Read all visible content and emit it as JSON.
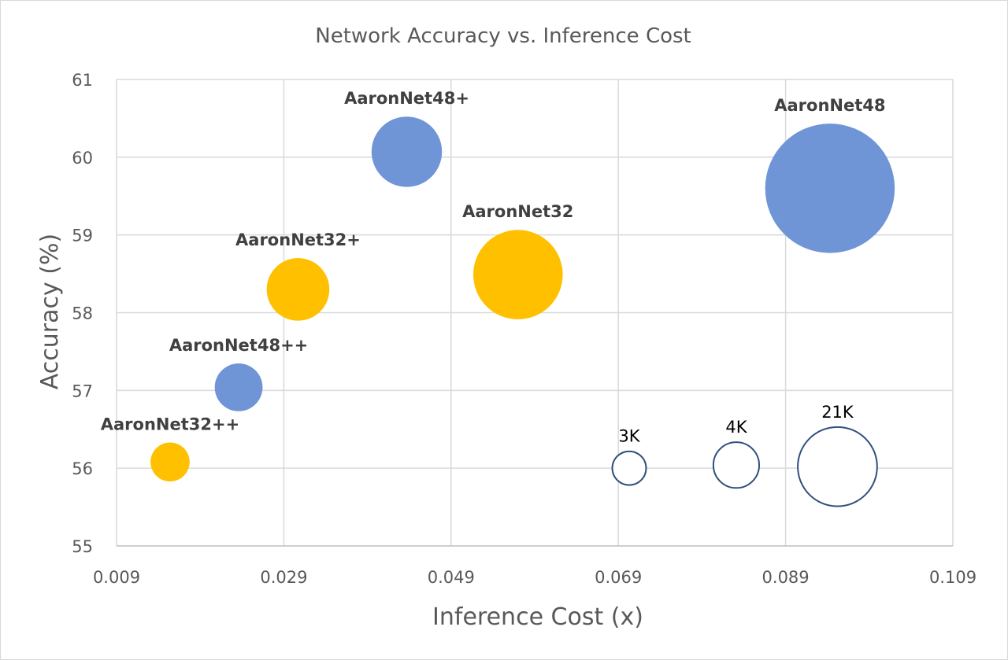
{
  "chart_data": {
    "type": "bubble",
    "title": "Network Accuracy vs. Inference Cost",
    "xlabel": "Inference Cost (x)",
    "ylabel": "Accuracy (%)",
    "xlim": [
      0.009,
      0.109
    ],
    "ylim": [
      55,
      61
    ],
    "x_ticks": [
      "0.009",
      "0.029",
      "0.049",
      "0.069",
      "0.089",
      "0.109"
    ],
    "y_ticks": [
      "55",
      "56",
      "57",
      "58",
      "59",
      "60",
      "61"
    ],
    "x_tick_values": [
      0.009,
      0.029,
      0.049,
      0.069,
      0.089,
      0.109
    ],
    "y_tick_values": [
      55,
      56,
      57,
      58,
      59,
      60,
      61
    ],
    "grid": true,
    "colors": {
      "blue": "#6f95d6",
      "yellow": "#ffc000",
      "legend_outline": "#2f4f7f"
    },
    "points": [
      {
        "label": "AaronNet48+",
        "x": 0.0437,
        "y": 60.07,
        "size": 13.0,
        "color": "blue"
      },
      {
        "label": "AaronNet48",
        "x": 0.0943,
        "y": 59.6,
        "size": 44.0,
        "color": "blue"
      },
      {
        "label": "AaronNet32+",
        "x": 0.0307,
        "y": 58.3,
        "size": 10.3,
        "color": "yellow"
      },
      {
        "label": "AaronNet32",
        "x": 0.057,
        "y": 58.49,
        "size": 21.0,
        "color": "yellow"
      },
      {
        "label": "AaronNet48++",
        "x": 0.0236,
        "y": 57.04,
        "size": 6.0,
        "color": "blue"
      },
      {
        "label": "AaronNet32++",
        "x": 0.0154,
        "y": 56.08,
        "size": 4.0,
        "color": "yellow"
      }
    ],
    "size_legend": [
      {
        "label": "3K",
        "x": 0.0703,
        "y": 56.0,
        "size": 3.0
      },
      {
        "label": "4K",
        "x": 0.0831,
        "y": 56.04,
        "size": 5.5
      },
      {
        "label": "21K",
        "x": 0.0952,
        "y": 56.02,
        "size": 16.5
      }
    ]
  }
}
